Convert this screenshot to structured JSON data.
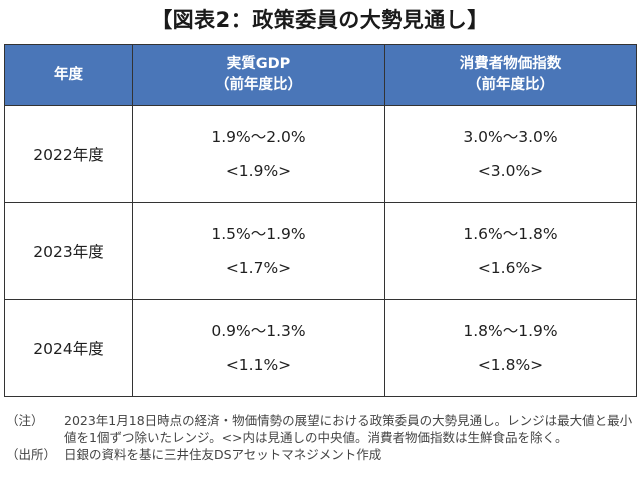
{
  "title": "【図表2：政策委員の大勢見通し】",
  "table": {
    "headers": {
      "year": "年度",
      "gdp_line1": "実質GDP",
      "gdp_line2": "（前年度比）",
      "cpi_line1": "消費者物価指数",
      "cpi_line2": "（前年度比）"
    },
    "rows": [
      {
        "year": "2022年度",
        "gdp_range": "1.9%～2.0%",
        "gdp_median": "<1.9%>",
        "cpi_range": "3.0%～3.0%",
        "cpi_median": "<3.0%>"
      },
      {
        "year": "2023年度",
        "gdp_range": "1.5%～1.9%",
        "gdp_median": "<1.7%>",
        "cpi_range": "1.6%～1.8%",
        "cpi_median": "<1.6%>"
      },
      {
        "year": "2024年度",
        "gdp_range": "0.9%～1.3%",
        "gdp_median": "<1.1%>",
        "cpi_range": "1.8%～1.9%",
        "cpi_median": "<1.8%>"
      }
    ]
  },
  "notes": {
    "note_label": "（注）",
    "note_text": "2023年1月18日時点の経済・物価情勢の展望における政策委員の大勢見通し。レンジは最大値と最小値を1個ずつ除いたレンジ。<>内は見通しの中央値。消費者物価指数は生鮮食品を除く。",
    "source_label": "（出所）",
    "source_text": "日銀の資料を基に三井住友DSアセットマネジメント作成"
  },
  "colors": {
    "header_bg": "#4a76b8",
    "header_text": "#ffffff",
    "border": "#333333"
  }
}
